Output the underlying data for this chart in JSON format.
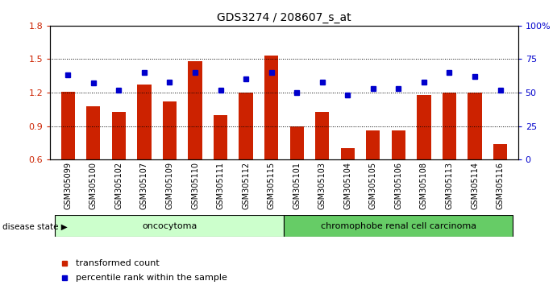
{
  "title": "GDS3274 / 208607_s_at",
  "samples": [
    "GSM305099",
    "GSM305100",
    "GSM305102",
    "GSM305107",
    "GSM305109",
    "GSM305110",
    "GSM305111",
    "GSM305112",
    "GSM305115",
    "GSM305101",
    "GSM305103",
    "GSM305104",
    "GSM305105",
    "GSM305106",
    "GSM305108",
    "GSM305113",
    "GSM305114",
    "GSM305116"
  ],
  "bar_values": [
    1.21,
    1.08,
    1.03,
    1.27,
    1.12,
    1.48,
    1.0,
    1.2,
    1.53,
    0.9,
    1.03,
    0.7,
    0.86,
    0.86,
    1.18,
    1.2,
    1.2,
    0.74
  ],
  "dot_pct": [
    63,
    57,
    52,
    65,
    58,
    65,
    52,
    60,
    65,
    50,
    58,
    48,
    53,
    53,
    58,
    65,
    62,
    52
  ],
  "bar_color": "#cc2200",
  "dot_color": "#0000cc",
  "ylim_left": [
    0.6,
    1.8
  ],
  "ylim_right": [
    0,
    100
  ],
  "yticks_left": [
    0.6,
    0.9,
    1.2,
    1.5,
    1.8
  ],
  "yticks_right": [
    0,
    25,
    50,
    75,
    100
  ],
  "ytick_labels_right": [
    "0",
    "25",
    "50",
    "75",
    "100%"
  ],
  "oncocytoma_count": 9,
  "disease_label_left": "oncocytoma",
  "disease_label_right": "chromophobe renal cell carcinoma",
  "group_color_light": "#ccffcc",
  "group_color_dark": "#66cc66",
  "legend_bar": "transformed count",
  "legend_dot": "percentile rank within the sample",
  "disease_state_label": "disease state",
  "bar_axis_color": "#cc2200",
  "dot_axis_color": "#0000cc"
}
